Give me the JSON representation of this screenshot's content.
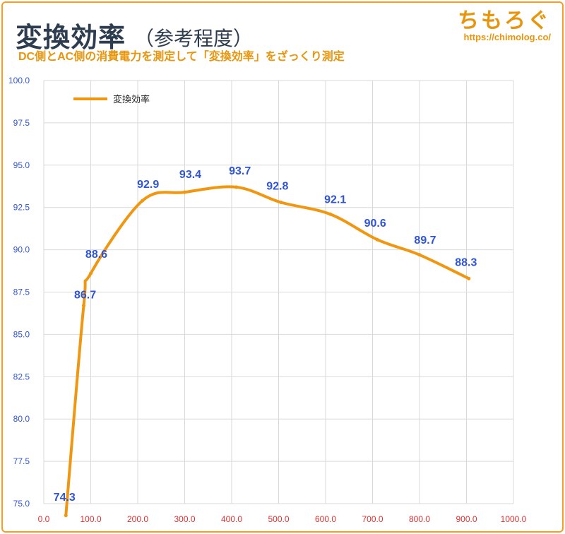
{
  "header": {
    "title": "変換効率",
    "title_paren": "（参考程度）",
    "subtitle": "DC側とAC側の消費電力を測定して「変換効率」をざっくり測定",
    "brand_logo": "ちもろぐ",
    "brand_url": "https://chimolog.co/"
  },
  "colors": {
    "line": "#f0960f",
    "data_label": "#2f55d4",
    "y_tick": "#2f55d4",
    "x_tick": "#e03030",
    "grid": "#d9d9d9",
    "title": "#2d3d4f",
    "accent": "#e8950c"
  },
  "chart_data": {
    "type": "line",
    "title": "変換効率",
    "subtitle": "DC側とAC側の消費電力を測定して「変換効率」をざっくり測定",
    "xlim": [
      0,
      1000
    ],
    "ylim": [
      75,
      100
    ],
    "x_ticks": [
      "0.0",
      "100.0",
      "200.0",
      "300.0",
      "400.0",
      "500.0",
      "600.0",
      "700.0",
      "800.0",
      "900.0",
      "1000.0"
    ],
    "y_ticks": [
      "75.0",
      "77.5",
      "80.0",
      "82.5",
      "85.0",
      "87.5",
      "90.0",
      "92.5",
      "95.0",
      "97.5",
      "100.0"
    ],
    "grid": true,
    "legend_position": "top-left",
    "series": [
      {
        "name": "変換効率",
        "x": [
          47,
          85,
          100,
          210,
          300,
          410,
          505,
          610,
          710,
          800,
          905
        ],
        "y": [
          74.3,
          86.7,
          88.6,
          92.9,
          93.4,
          93.7,
          92.8,
          92.1,
          90.6,
          89.7,
          88.3
        ],
        "labels": [
          "74.3",
          "86.7",
          "88.6",
          "92.9",
          "93.4",
          "93.7",
          "92.8",
          "92.1",
          "90.6",
          "89.7",
          "88.3"
        ]
      }
    ]
  }
}
